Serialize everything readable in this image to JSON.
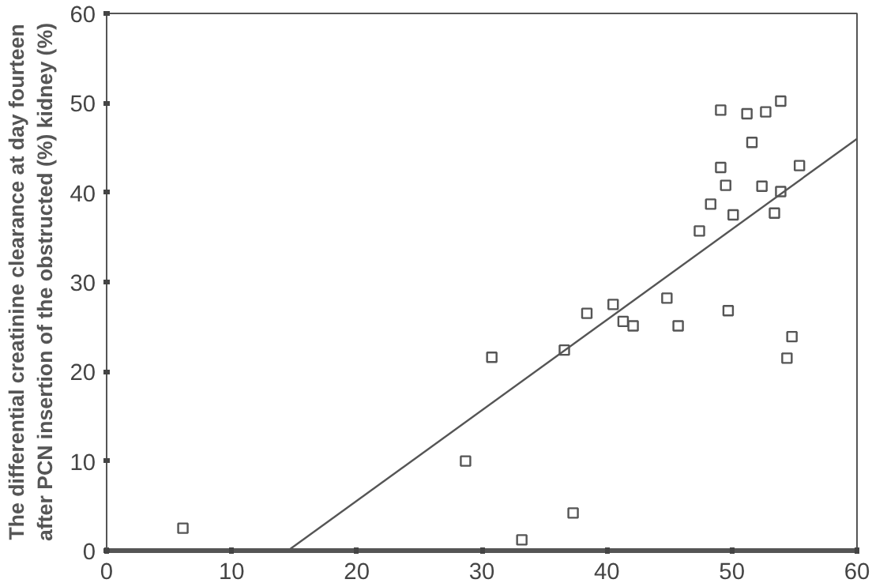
{
  "chart_data": {
    "type": "scatter",
    "ylabel": "The differential creatinine clearance at day fourteen\nafter PCN insertion of the obstructed (%) kidney (%)",
    "xlim": [
      0,
      60
    ],
    "ylim": [
      0,
      60
    ],
    "xticks": [
      0,
      10,
      20,
      30,
      40,
      50,
      60
    ],
    "yticks": [
      0,
      10,
      20,
      30,
      40,
      50,
      60
    ],
    "grid": false,
    "series": [
      {
        "marker": "square",
        "color": "#555555",
        "x": [
          6.1,
          28.7,
          30.8,
          33.2,
          36.6,
          37.3,
          38.4,
          40.5,
          41.3,
          42.1,
          44.8,
          45.7,
          47.4,
          48.3,
          49.1,
          49.1,
          49.5,
          49.7,
          50.1,
          51.2,
          51.6,
          52.4,
          52.7,
          53.4,
          53.9,
          53.9,
          54.4,
          54.8,
          55.4
        ],
        "values": [
          2.5,
          10,
          21.6,
          1.2,
          22.4,
          4.2,
          26.5,
          27.5,
          25.6,
          25.1,
          28.2,
          25.1,
          35.7,
          38.7,
          49.2,
          42.8,
          40.8,
          26.8,
          37.5,
          48.8,
          45.6,
          40.7,
          49.0,
          37.7,
          50.2,
          40.1,
          21.5,
          23.9,
          43.0
        ]
      },
      {
        "type": "line",
        "marker": "none",
        "color": "#555555",
        "x": [
          14.5,
          60
        ],
        "values": [
          0,
          46
        ]
      }
    ]
  }
}
